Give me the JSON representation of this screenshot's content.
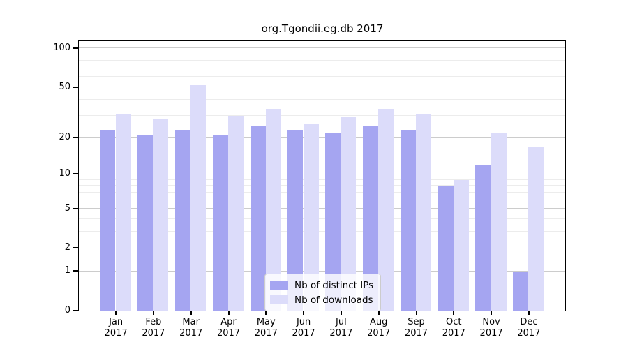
{
  "chart_data": {
    "type": "bar",
    "title": "org.Tgondii.eg.db 2017",
    "year": "2017",
    "categories": [
      "Jan",
      "Feb",
      "Mar",
      "Apr",
      "May",
      "Jun",
      "Jul",
      "Aug",
      "Sep",
      "Oct",
      "Nov",
      "Dec"
    ],
    "series": [
      {
        "name": "Nb of distinct IPs",
        "color": "#a5a5f1",
        "values": [
          23,
          21,
          23,
          21,
          25,
          23,
          22,
          25,
          23,
          8,
          12,
          1
        ]
      },
      {
        "name": "Nb of downloads",
        "color": "#dcdcfa",
        "values": [
          31,
          28,
          52,
          30,
          34,
          26,
          29,
          34,
          31,
          9,
          22,
          17
        ]
      }
    ],
    "y_axis": {
      "scale": "log1p",
      "ticks": [
        100,
        50,
        20,
        10,
        5,
        2,
        1,
        0
      ],
      "minor_gridlines": [
        90,
        80,
        70,
        60,
        40,
        30,
        9,
        8,
        7,
        6,
        4,
        3
      ],
      "ylim": [
        0,
        114
      ]
    },
    "legend": {
      "position": "lower-center",
      "entries": [
        "Nb of distinct IPs",
        "Nb of downloads"
      ]
    },
    "colors": {
      "major_grid": "#cccccc",
      "minor_grid": "#ececec",
      "axis": "#000000",
      "background": "#ffffff"
    }
  }
}
